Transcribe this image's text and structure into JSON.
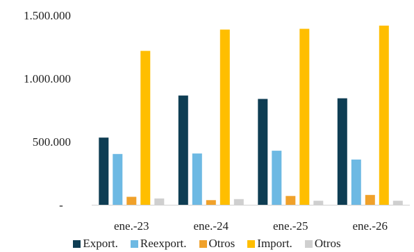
{
  "chart_data": {
    "type": "bar",
    "categories": [
      "ene.-23",
      "ene.-24",
      "ene.-25",
      "ene.-26"
    ],
    "series": [
      {
        "name": "Export.",
        "color": "#0e3d53",
        "values": [
          532000,
          865000,
          838000,
          843000
        ]
      },
      {
        "name": "Reexport.",
        "color": "#6db9e3",
        "values": [
          402000,
          406000,
          428000,
          358000
        ]
      },
      {
        "name": "Otros",
        "color": "#f0a12a",
        "values": [
          63000,
          37000,
          70000,
          78000
        ]
      },
      {
        "name": "Import.",
        "color": "#ffbe00",
        "values": [
          1218000,
          1387000,
          1393000,
          1418000
        ]
      },
      {
        "name": "Otros",
        "color": "#cfcfcf",
        "values": [
          50000,
          45000,
          32000,
          32000
        ]
      }
    ],
    "yticks": [
      {
        "value": 0,
        "label": "-"
      },
      {
        "value": 500000,
        "label": "500.000"
      },
      {
        "value": 1000000,
        "label": "1.000.000"
      },
      {
        "value": 1500000,
        "label": "1.500.000"
      }
    ],
    "ylim": [
      0,
      1500000
    ],
    "title": "",
    "xlabel": "",
    "ylabel": "",
    "grid": false,
    "legend_position": "bottom"
  }
}
